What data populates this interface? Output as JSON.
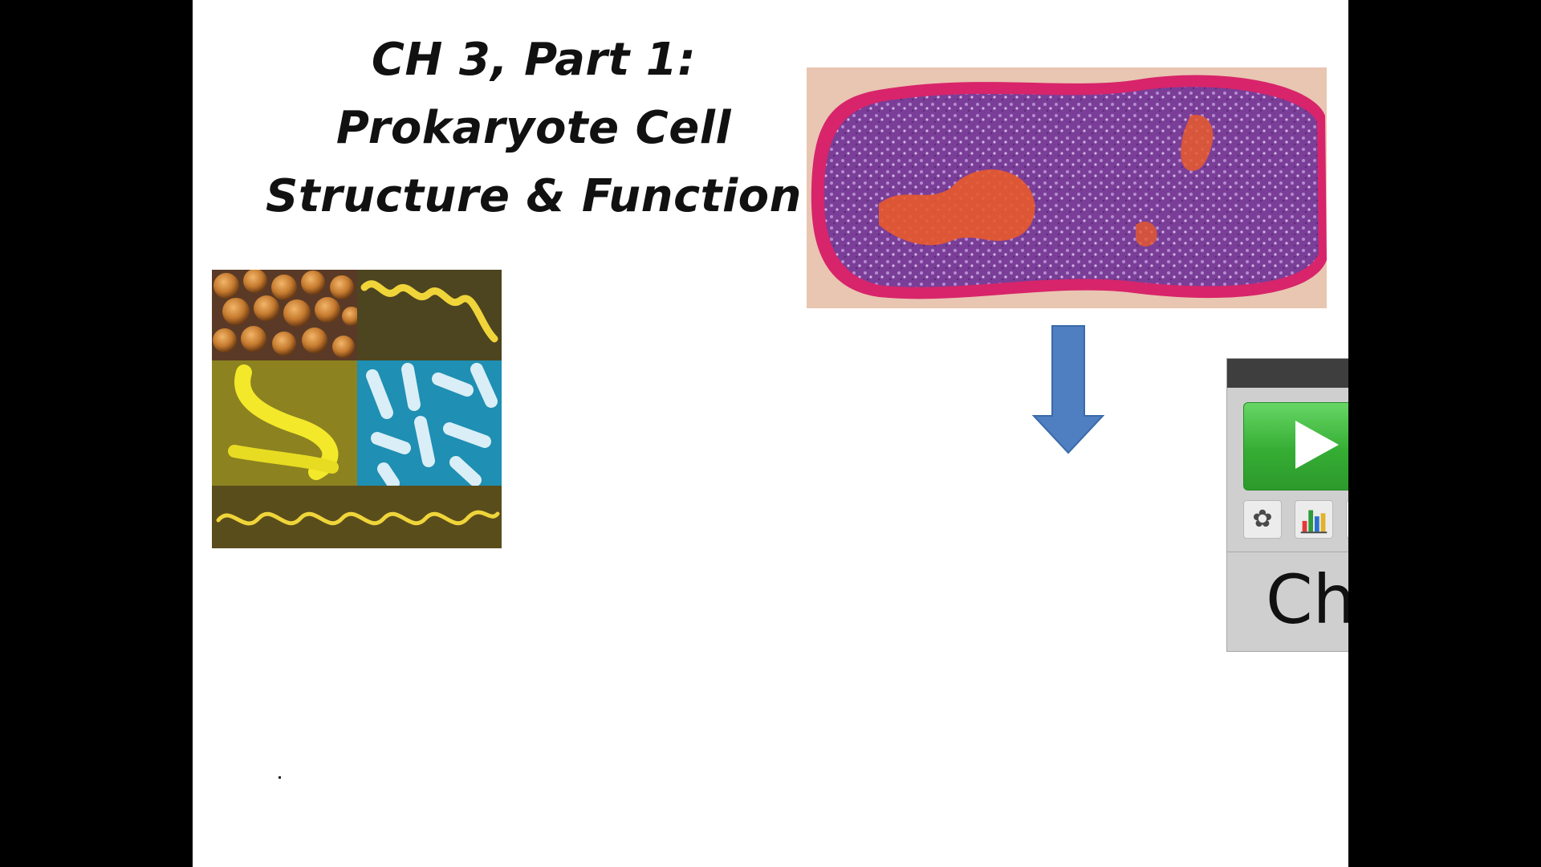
{
  "slide": {
    "title_lines": [
      "CH 3, Part 1:",
      "Prokaryote Cell",
      "Structure & Function"
    ]
  },
  "images": {
    "collage": "bacteria-morphology-collage",
    "micrograph": "prokaryote-cell-micrograph"
  },
  "player": {
    "label": "Ch",
    "play_icon": "play-icon",
    "settings_icon": "gear-icon",
    "stats_icon": "bar-chart-icon"
  },
  "colors": {
    "arrow": "#4f7fc1",
    "play_button": "#3fb83e",
    "cell_membrane": "#d8246a",
    "cell_cytoplasm": "#7b3f98",
    "cell_nucleoid": "#e85a2b"
  }
}
